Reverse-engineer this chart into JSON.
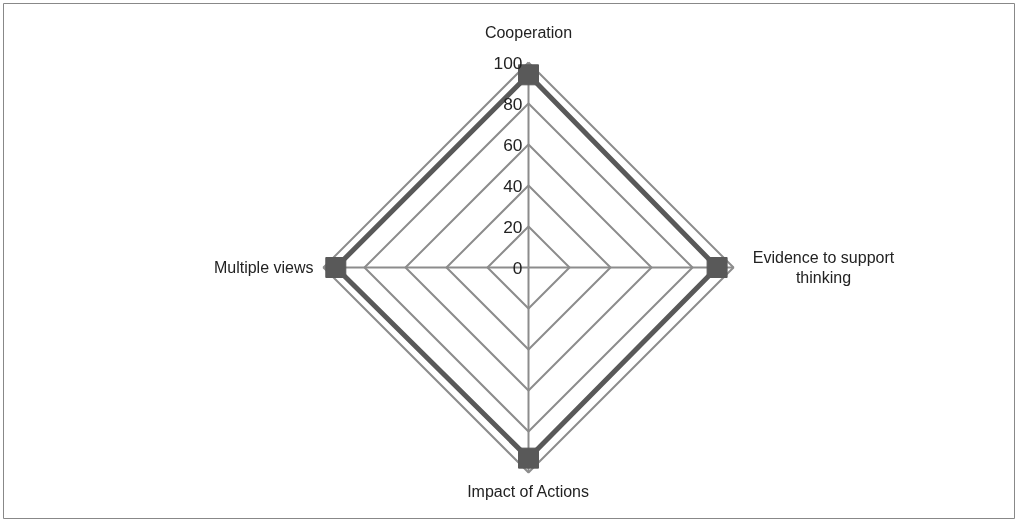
{
  "chart_data": {
    "type": "radar",
    "categories": [
      "Cooperation",
      "Evidence to support thinking",
      "Impact of Actions",
      "Multiple views"
    ],
    "series": [
      {
        "color": "#595959",
        "values": [
          94,
          92,
          93,
          94
        ]
      }
    ],
    "ylim": [
      0,
      100
    ],
    "yticks": [
      0,
      20,
      40,
      60,
      80,
      100
    ],
    "grid": true,
    "marker": "square",
    "line_style": "solid"
  }
}
